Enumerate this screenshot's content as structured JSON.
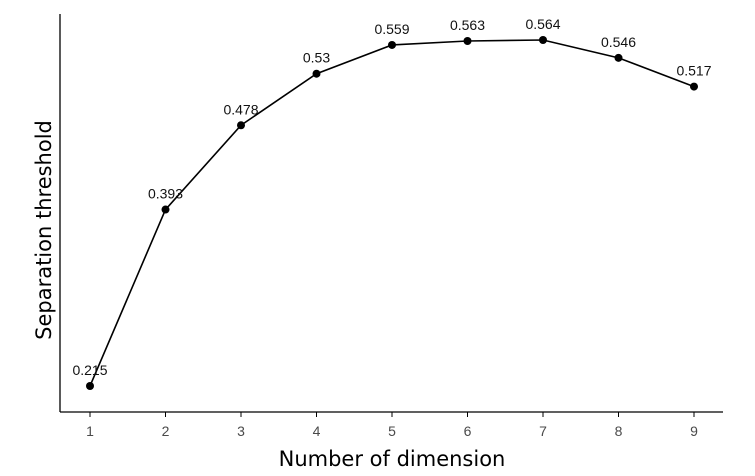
{
  "chart_data": {
    "type": "line",
    "title": "",
    "xlabel": "Number of dimension",
    "ylabel": "Separation threshold",
    "x": [
      1,
      2,
      3,
      4,
      5,
      6,
      7,
      8,
      9
    ],
    "y": [
      0.215,
      0.393,
      0.478,
      0.53,
      0.559,
      0.563,
      0.564,
      0.546,
      0.517
    ],
    "data_labels": [
      "0.215",
      "0.393",
      "0.478",
      "0.53",
      "0.559",
      "0.563",
      "0.564",
      "0.546",
      "0.517"
    ],
    "x_ticks": [
      "1",
      "2",
      "3",
      "4",
      "5",
      "6",
      "7",
      "8",
      "9"
    ],
    "xlim": [
      0.6,
      9.4
    ],
    "ylim": [
      0.2,
      0.575
    ],
    "y_ticks_shown": false,
    "grid": false,
    "legend": "none",
    "line_color": "#000000",
    "marker_color": "#000000"
  }
}
